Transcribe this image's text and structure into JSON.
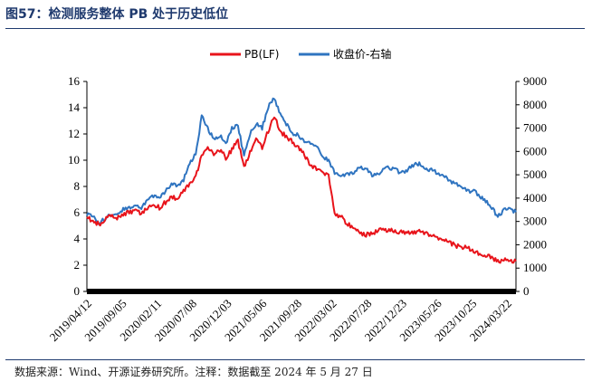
{
  "title": "图57：检测服务整体 PB 处于历史低位",
  "footnote": "数据来源：Wind、开源证券研究所。注释：数据截至 2024 年 5 月 27 日",
  "chart_data": {
    "type": "line",
    "title": "检测服务整体 PB 处于历史低位",
    "x_tick_labels": [
      "2019/04/12",
      "2019/09/05",
      "2020/02/11",
      "2020/07/08",
      "2020/12/03",
      "2021/05/06",
      "2021/09/28",
      "2022/03/02",
      "2022/07/28",
      "2022/12/23",
      "2023/05/26",
      "2023/10/25",
      "2024/03/22"
    ],
    "y_left": {
      "label": "PB(LF)",
      "lim": [
        0,
        16
      ],
      "ticks": [
        0,
        2,
        4,
        6,
        8,
        10,
        12,
        14,
        16
      ]
    },
    "y_right": {
      "label": "收盘价-右轴",
      "lim": [
        0,
        9000
      ],
      "ticks": [
        0,
        1000,
        2000,
        3000,
        4000,
        5000,
        6000,
        7000,
        8000,
        9000
      ]
    },
    "legend": {
      "position": "top-center"
    },
    "series": [
      {
        "name": "PB(LF)",
        "axis": "left",
        "color": "#e8141b",
        "values": [
          5.6,
          5.4,
          5.1,
          5.5,
          5.7,
          5.6,
          5.9,
          6.0,
          6.2,
          5.9,
          6.3,
          6.6,
          6.4,
          6.8,
          7.2,
          7.0,
          7.6,
          8.2,
          8.8,
          10.3,
          10.9,
          10.4,
          10.8,
          10.2,
          10.8,
          11.5,
          9.4,
          10.6,
          11.6,
          11.0,
          12.2,
          13.4,
          12.2,
          11.8,
          11.4,
          11.0,
          10.4,
          9.6,
          9.3,
          9.0,
          8.8,
          6.0,
          5.7,
          5.2,
          4.8,
          4.5,
          4.3,
          4.4,
          4.6,
          4.7,
          4.7,
          4.6,
          4.5,
          4.4,
          4.5,
          4.6,
          4.5,
          4.3,
          4.1,
          3.9,
          3.7,
          3.5,
          3.4,
          3.3,
          3.1,
          2.9,
          2.8,
          2.5,
          2.3,
          2.4,
          2.4,
          2.3
        ]
      },
      {
        "name": "收盘价-右轴",
        "axis": "right",
        "color": "#2f74c0",
        "values": [
          3300,
          3200,
          2950,
          3100,
          3300,
          3350,
          3500,
          3600,
          3700,
          3550,
          3900,
          4100,
          4000,
          4300,
          4600,
          4500,
          4800,
          5500,
          5900,
          7500,
          7000,
          6500,
          6700,
          6300,
          7000,
          7100,
          5800,
          6800,
          7200,
          7000,
          7900,
          8300,
          7600,
          7200,
          6800,
          6700,
          6400,
          6400,
          6200,
          5800,
          5600,
          5100,
          4900,
          5000,
          5100,
          5300,
          5300,
          5000,
          5000,
          5200,
          5300,
          5200,
          5100,
          5200,
          5400,
          5500,
          5300,
          5200,
          5100,
          5000,
          4700,
          4600,
          4500,
          4300,
          4300,
          4100,
          3900,
          3600,
          3200,
          3500,
          3500,
          3400
        ]
      }
    ]
  }
}
